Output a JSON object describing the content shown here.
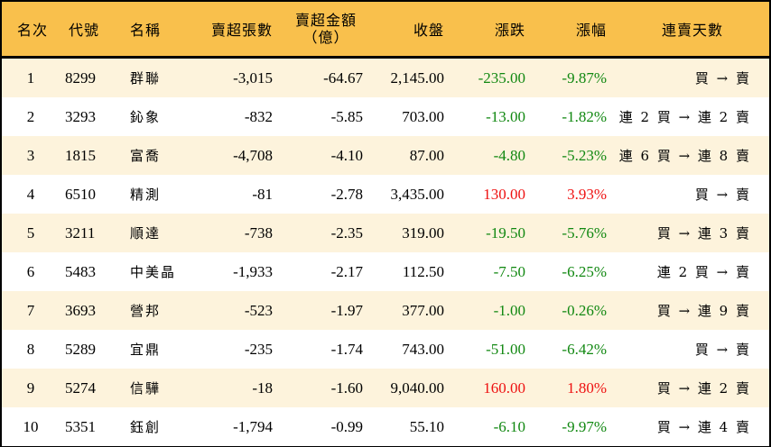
{
  "table": {
    "headers": {
      "rank": "名次",
      "code": "代號",
      "name": "名稱",
      "net_sell_lots": "賣超張數",
      "net_sell_amount_line1": "賣超金額",
      "net_sell_amount_line2": "（億）",
      "close": "收盤",
      "change": "漲跌",
      "change_pct": "漲幅",
      "streak": "連賣天數"
    },
    "colors": {
      "header_bg": "#f9c04c",
      "row_alt_bg": "#fdf3dc",
      "up": "#ee1111",
      "down": "#118811"
    },
    "rows": [
      {
        "rank": "1",
        "code": "8299",
        "name": "群聯",
        "lots": "-3,015",
        "amount": "-64.67",
        "close": "2,145.00",
        "change": "-235.00",
        "pct": "-9.87%",
        "dir": "down",
        "streak": "買 → 賣"
      },
      {
        "rank": "2",
        "code": "3293",
        "name": "鈊象",
        "lots": "-832",
        "amount": "-5.85",
        "close": "703.00",
        "change": "-13.00",
        "pct": "-1.82%",
        "dir": "down",
        "streak": "連 2 買 → 連 2 賣"
      },
      {
        "rank": "3",
        "code": "1815",
        "name": "富喬",
        "lots": "-4,708",
        "amount": "-4.10",
        "close": "87.00",
        "change": "-4.80",
        "pct": "-5.23%",
        "dir": "down",
        "streak": "連 6 買 → 連 8 賣"
      },
      {
        "rank": "4",
        "code": "6510",
        "name": "精測",
        "lots": "-81",
        "amount": "-2.78",
        "close": "3,435.00",
        "change": "130.00",
        "pct": "3.93%",
        "dir": "up",
        "streak": "買 → 賣"
      },
      {
        "rank": "5",
        "code": "3211",
        "name": "順達",
        "lots": "-738",
        "amount": "-2.35",
        "close": "319.00",
        "change": "-19.50",
        "pct": "-5.76%",
        "dir": "down",
        "streak": "買 → 連 3 賣"
      },
      {
        "rank": "6",
        "code": "5483",
        "name": "中美晶",
        "lots": "-1,933",
        "amount": "-2.17",
        "close": "112.50",
        "change": "-7.50",
        "pct": "-6.25%",
        "dir": "down",
        "streak": "連 2 買 → 賣"
      },
      {
        "rank": "7",
        "code": "3693",
        "name": "營邦",
        "lots": "-523",
        "amount": "-1.97",
        "close": "377.00",
        "change": "-1.00",
        "pct": "-0.26%",
        "dir": "down",
        "streak": "買 → 連 9 賣"
      },
      {
        "rank": "8",
        "code": "5289",
        "name": "宜鼎",
        "lots": "-235",
        "amount": "-1.74",
        "close": "743.00",
        "change": "-51.00",
        "pct": "-6.42%",
        "dir": "down",
        "streak": "買 → 賣"
      },
      {
        "rank": "9",
        "code": "5274",
        "name": "信驊",
        "lots": "-18",
        "amount": "-1.60",
        "close": "9,040.00",
        "change": "160.00",
        "pct": "1.80%",
        "dir": "up",
        "streak": "買 → 連 2 賣"
      },
      {
        "rank": "10",
        "code": "5351",
        "name": "鈺創",
        "lots": "-1,794",
        "amount": "-0.99",
        "close": "55.10",
        "change": "-6.10",
        "pct": "-9.97%",
        "dir": "down",
        "streak": "買 → 連 4 賣"
      }
    ]
  }
}
